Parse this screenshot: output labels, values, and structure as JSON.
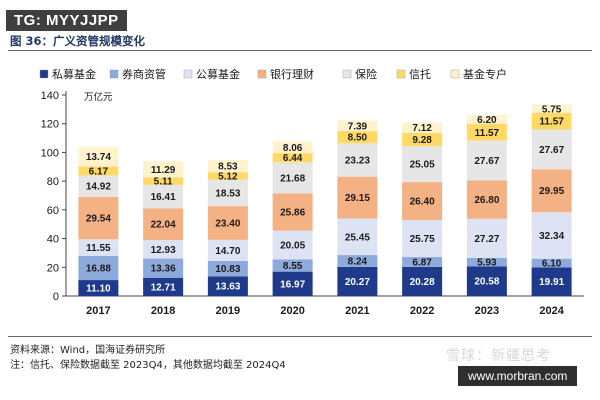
{
  "watermark_top": "TG: MYYJJPP",
  "figure_title": "图 36：广义资管规模变化",
  "source_note": "资料来源：Wind，国海证券研究所",
  "footnote": "注：信托、保险数据截至 2023Q4，其他数据均截至 2024Q4",
  "watermark_social": "雪球：新疆思考",
  "watermark_url": "www.morbran.com",
  "chart_data": {
    "type": "bar",
    "stacked": true,
    "title": "",
    "unit_label": "万亿元",
    "xlabel": "",
    "ylabel": "",
    "ylim": [
      0,
      140
    ],
    "yticks": [
      0,
      20,
      40,
      60,
      80,
      100,
      120,
      140
    ],
    "grid": false,
    "legend_position": "top",
    "categories": [
      "2017",
      "2018",
      "2019",
      "2020",
      "2021",
      "2022",
      "2023",
      "2024"
    ],
    "series": [
      {
        "name": "私募基金",
        "color": "#1f3a8a",
        "label_color": "#ffffff",
        "values": [
          11.1,
          12.71,
          13.63,
          16.97,
          20.27,
          20.28,
          20.58,
          19.91
        ]
      },
      {
        "name": "券商资管",
        "color": "#8ea9db",
        "label_color": "#1a1a1a",
        "values": [
          16.88,
          13.36,
          10.83,
          8.55,
          8.24,
          6.87,
          5.93,
          6.1
        ]
      },
      {
        "name": "公募基金",
        "color": "#dde3f3",
        "label_color": "#1a1a1a",
        "values": [
          11.55,
          12.93,
          14.7,
          20.05,
          25.45,
          25.75,
          27.27,
          32.34
        ]
      },
      {
        "name": "银行理财",
        "color": "#f4b183",
        "label_color": "#1a1a1a",
        "values": [
          29.54,
          22.04,
          23.4,
          25.86,
          29.15,
          26.4,
          26.8,
          29.95
        ]
      },
      {
        "name": "保险",
        "color": "#e7e6e6",
        "label_color": "#1a1a1a",
        "values": [
          14.92,
          16.41,
          18.53,
          21.68,
          23.23,
          25.05,
          27.67,
          27.67
        ]
      },
      {
        "name": "信托",
        "color": "#ffd966",
        "label_color": "#1a1a1a",
        "values": [
          6.17,
          5.11,
          5.12,
          6.44,
          8.5,
          9.28,
          11.57,
          11.57
        ]
      },
      {
        "name": "基金专户",
        "color": "#fff2cc",
        "label_color": "#1a1a1a",
        "values": [
          13.74,
          11.29,
          8.53,
          8.06,
          7.39,
          7.12,
          6.2,
          5.75
        ]
      }
    ]
  }
}
